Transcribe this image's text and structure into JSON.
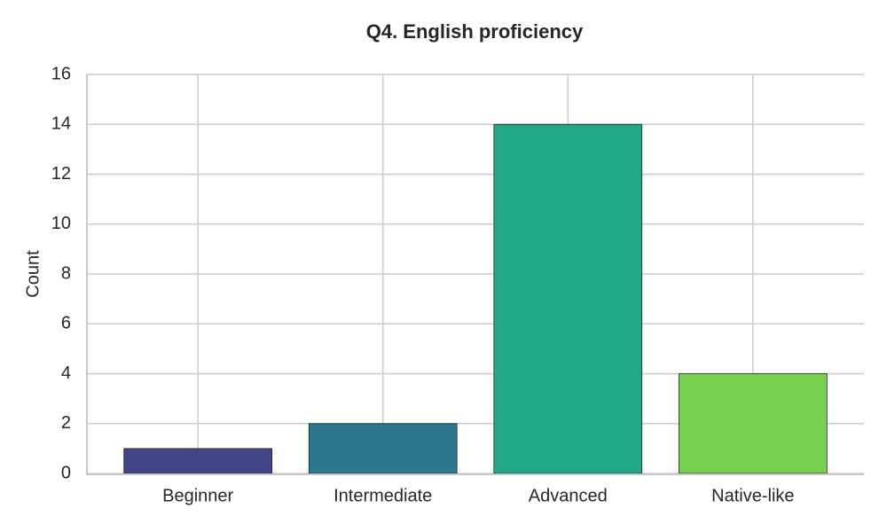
{
  "chart_data": {
    "type": "bar",
    "title": "Q4. English proficiency",
    "y_label": "Count",
    "categories": [
      "Beginner",
      "Intermediate",
      "Advanced",
      "Native-like"
    ],
    "values": [
      1,
      2,
      14,
      4
    ],
    "colors": [
      "#414487",
      "#2a788e",
      "#22a884",
      "#7ad151"
    ],
    "ylim": [
      0,
      16
    ],
    "yticks": [
      0,
      2,
      4,
      6,
      8,
      10,
      12,
      14,
      16
    ],
    "grid": true
  }
}
